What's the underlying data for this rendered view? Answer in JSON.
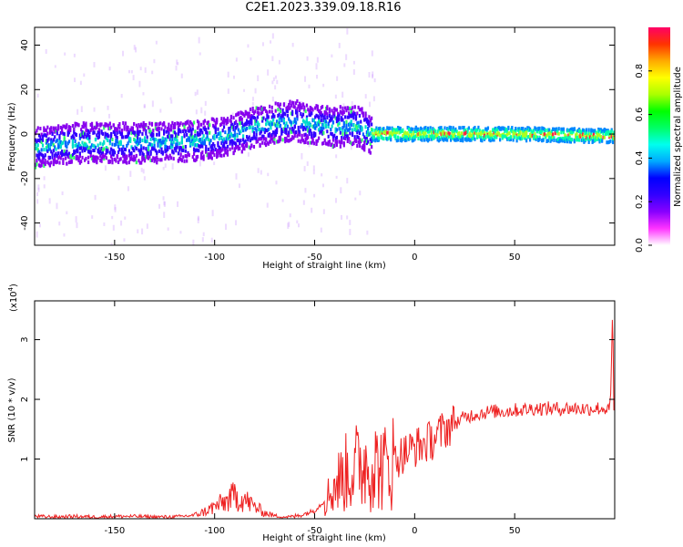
{
  "title": "C2E1.2023.339.09.18.R16",
  "chart_data": [
    {
      "type": "heatmap",
      "xlabel": "Height of straight line (km)",
      "ylabel": "Frequency (Hz)",
      "xlim": [
        -190,
        100
      ],
      "ylim": [
        -50,
        48
      ],
      "xticks": [
        -150,
        -100,
        -50,
        0,
        50
      ],
      "yticks": [
        -40,
        -20,
        0,
        20,
        40
      ],
      "colorbar": {
        "label": "Normalized spectral amplitude",
        "range": [
          0,
          1
        ],
        "ticks": [
          0.0,
          0.2,
          0.4,
          0.6,
          0.8
        ],
        "colors": [
          "#ffffff",
          "#ff33ff",
          "#8800ff",
          "#3300ff",
          "#0000ff",
          "#00aaff",
          "#00ffee",
          "#00ff66",
          "#00ff00",
          "#aaff00",
          "#ffff00",
          "#ffaa00",
          "#ff3300",
          "#ff0066"
        ]
      },
      "ridge": [
        {
          "x": -190,
          "y": -6
        },
        {
          "x": -170,
          "y": -4
        },
        {
          "x": -150,
          "y": -4
        },
        {
          "x": -130,
          "y": -4
        },
        {
          "x": -110,
          "y": -3
        },
        {
          "x": -100,
          "y": -2
        },
        {
          "x": -90,
          "y": 0
        },
        {
          "x": -80,
          "y": 3
        },
        {
          "x": -70,
          "y": 5
        },
        {
          "x": -60,
          "y": 6
        },
        {
          "x": -50,
          "y": 4
        },
        {
          "x": -40,
          "y": 3
        },
        {
          "x": -30,
          "y": 4
        },
        {
          "x": -22,
          "y": 0
        },
        {
          "x": 0,
          "y": 0
        },
        {
          "x": 50,
          "y": 0
        },
        {
          "x": 100,
          "y": -1
        }
      ]
    },
    {
      "type": "line",
      "xlabel": "Height of straight line (km)",
      "ylabel": "SNR (10 * v/v)",
      "exponent_label": "(x10",
      "exponent_sup": "4",
      "exponent_close": ")",
      "xlim": [
        -190,
        100
      ],
      "ylim": [
        0,
        3.65
      ],
      "xticks": [
        -150,
        -100,
        -50,
        0,
        50
      ],
      "yticks": [
        1,
        2,
        3
      ],
      "series": [
        {
          "color": "#ee2222",
          "x": [
            -190,
            -180,
            -170,
            -160,
            -150,
            -140,
            -130,
            -120,
            -110,
            -105,
            -100,
            -95,
            -90,
            -85,
            -80,
            -75,
            -70,
            -65,
            -60,
            -55,
            -50,
            -45,
            -40,
            -35,
            -30,
            -25,
            -20,
            -15,
            -10,
            -5,
            0,
            5,
            10,
            15,
            20,
            25,
            30,
            35,
            40,
            45,
            50,
            55,
            60,
            65,
            70,
            75,
            80,
            85,
            90,
            95,
            97,
            98,
            99,
            100
          ],
          "y": [
            0.04,
            0.03,
            0.04,
            0.03,
            0.04,
            0.04,
            0.03,
            0.03,
            0.06,
            0.12,
            0.2,
            0.28,
            0.38,
            0.32,
            0.2,
            0.1,
            0.05,
            0.03,
            0.04,
            0.08,
            0.14,
            0.3,
            0.55,
            0.75,
            0.85,
            0.95,
            0.9,
            0.85,
            1.0,
            1.1,
            1.2,
            1.25,
            1.35,
            1.5,
            1.6,
            1.7,
            1.75,
            1.78,
            1.8,
            1.8,
            1.82,
            1.83,
            1.85,
            1.85,
            1.84,
            1.85,
            1.85,
            1.84,
            1.85,
            1.85,
            1.8,
            2.0,
            3.6,
            0.5
          ]
        }
      ]
    }
  ]
}
